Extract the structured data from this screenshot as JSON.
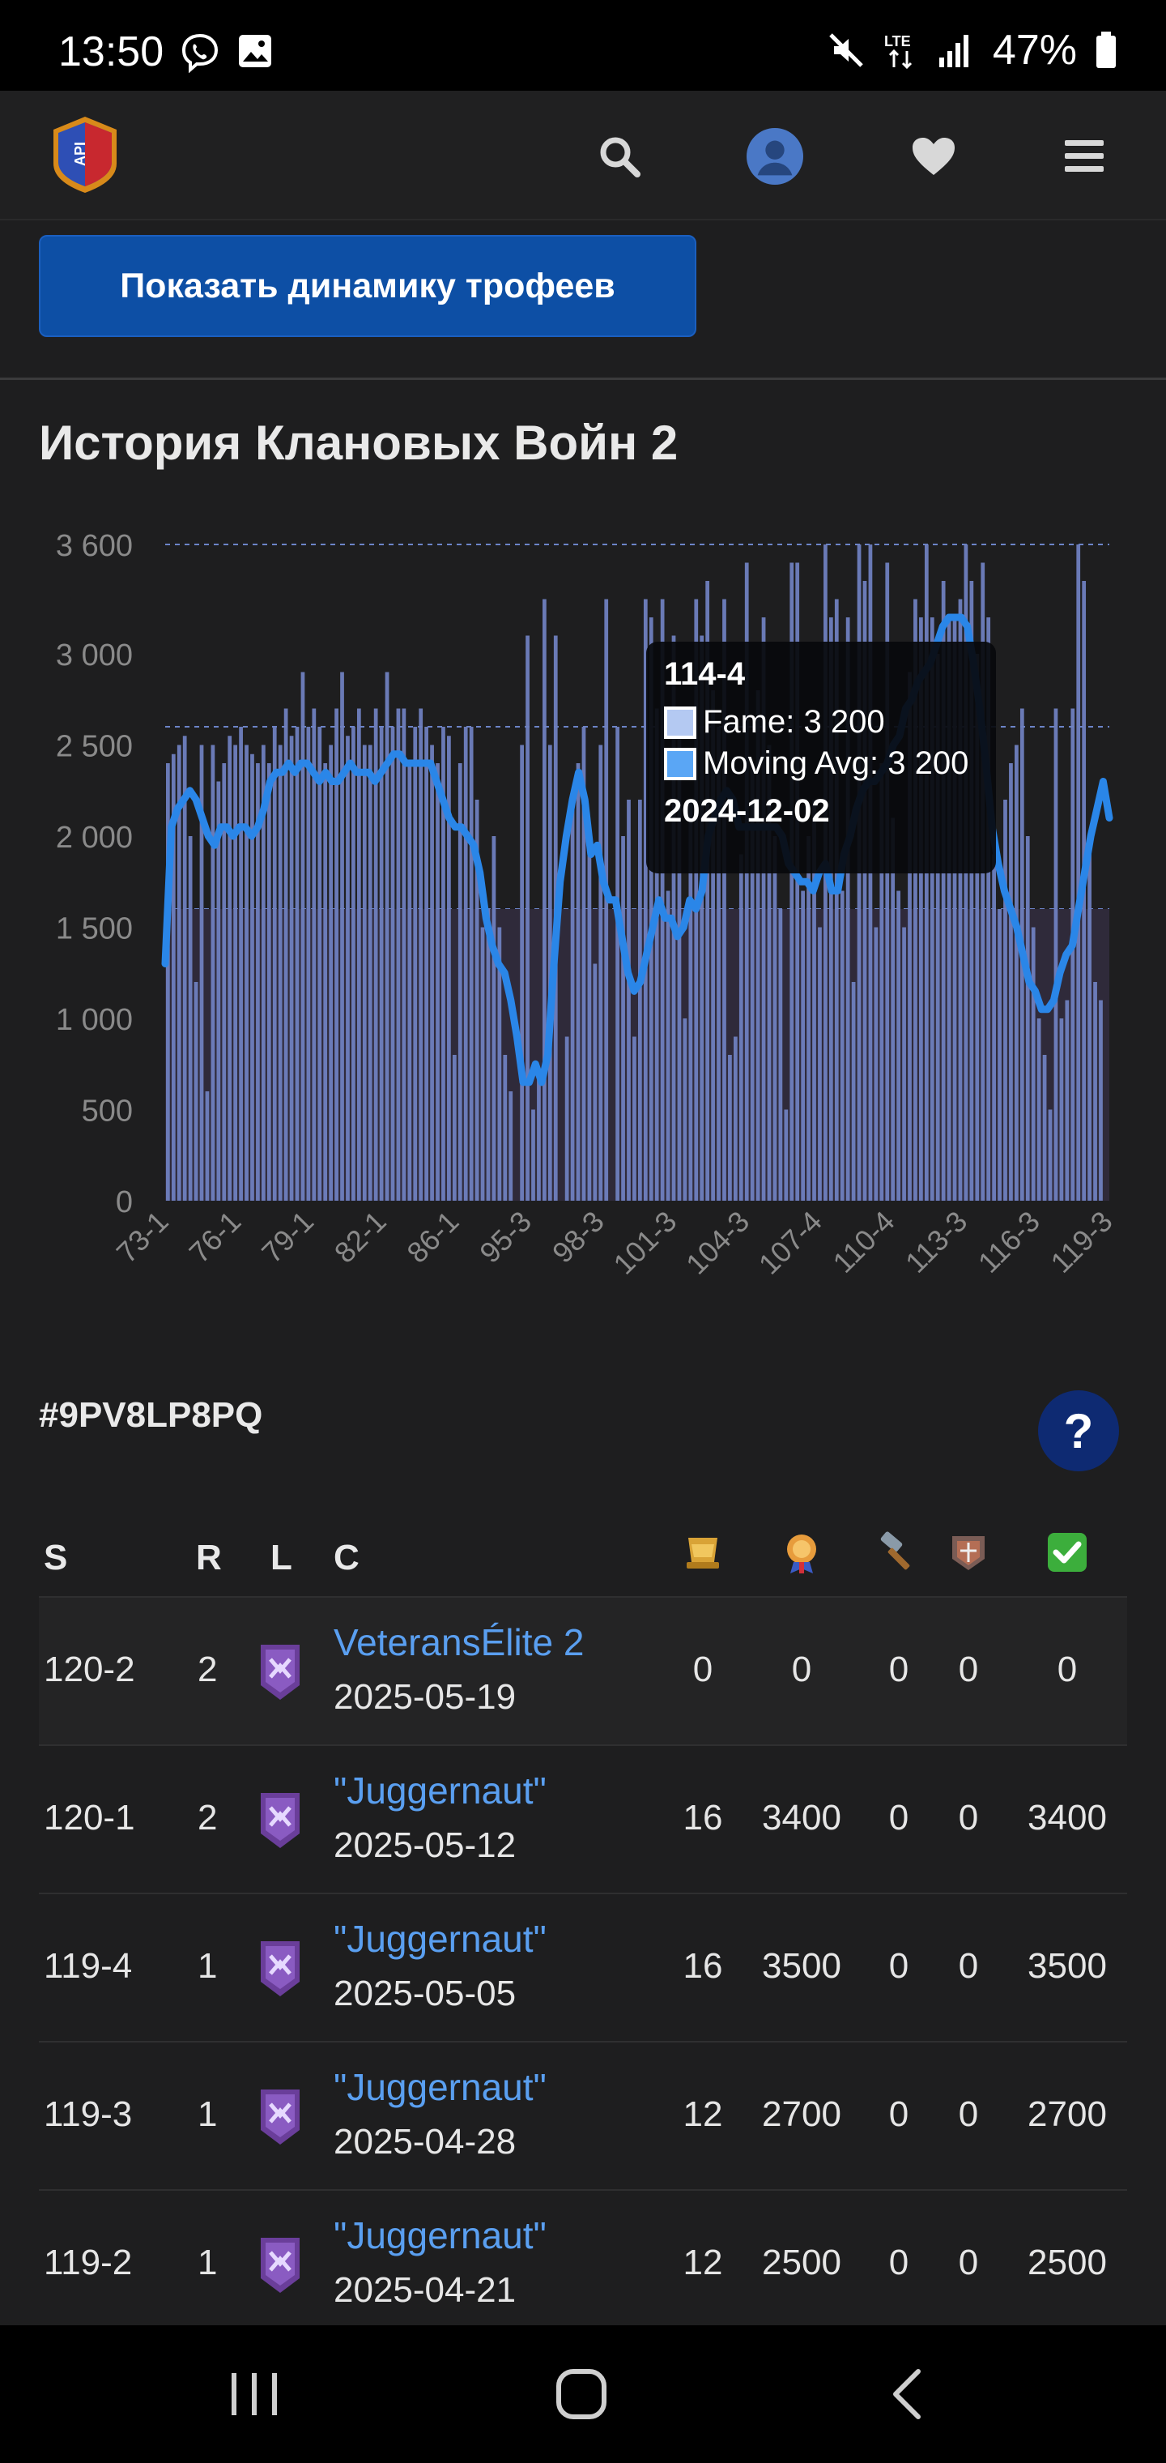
{
  "status": {
    "time": "13:50",
    "battery": "47%",
    "lte": "LTE"
  },
  "header": {
    "logo_text": "API"
  },
  "button_dynamics": "Показать динамику трофеев",
  "section_title": "История Клановых Войн 2",
  "chart_data": {
    "type": "bar",
    "title": "",
    "xlabel": "",
    "ylabel": "",
    "ylim": [
      0,
      3600
    ],
    "yticks": [
      "3 600",
      "3 000",
      "2 500",
      "2 000",
      "1 500",
      "1 000",
      "500",
      "0"
    ],
    "xticks": [
      "73-1",
      "76-1",
      "79-1",
      "82-1",
      "86-1",
      "95-3",
      "98-3",
      "101-3",
      "104-3",
      "107-4",
      "110-4",
      "113-3",
      "116-3",
      "119-3"
    ],
    "series": [
      {
        "name": "Fame",
        "color": "#6f7fbf",
        "values": [
          2400,
          2450,
          2500,
          2550,
          2000,
          1200,
          2500,
          600,
          2500,
          2300,
          2400,
          2550,
          2500,
          2600,
          2500,
          2450,
          2400,
          2500,
          2400,
          2600,
          2500,
          2700,
          2550,
          2600,
          2900,
          2600,
          2700,
          2600,
          2400,
          2500,
          2700,
          2900,
          2550,
          2600,
          2700,
          2500,
          2500,
          2700,
          2600,
          2900,
          2600,
          2700,
          2700,
          2400,
          2600,
          2700,
          2600,
          2500,
          2400,
          2600,
          2550,
          800,
          2400,
          2600,
          2600,
          2200,
          1500,
          1600,
          2000,
          1500,
          800,
          600,
          0,
          2500,
          3100,
          500,
          700,
          3300,
          2500,
          3100,
          0,
          900,
          2200,
          2400,
          2600,
          2000,
          1300,
          2500,
          3300,
          0,
          2600,
          2000,
          2200,
          900,
          2200,
          3300,
          3200,
          2700,
          3300,
          1700,
          3100,
          2600,
          1000,
          2200,
          3300,
          3100,
          3400,
          2800,
          2600,
          3300,
          800,
          900,
          1900,
          3500,
          2400,
          2800,
          3200,
          2500,
          2000,
          1600,
          500,
          3500,
          3500,
          1700,
          2000,
          2200,
          1500,
          3600,
          3200,
          3300,
          1700,
          3200,
          1200,
          3600,
          3400,
          3600,
          1500,
          2400,
          3500,
          2100,
          1700,
          1500,
          2900,
          3300,
          3200,
          3600,
          3200,
          3000,
          3400,
          3200,
          3200,
          3300,
          3600,
          3400,
          3000,
          3500,
          3200,
          1900,
          1600,
          2200,
          2400,
          2500,
          2700,
          2000,
          1500,
          1000,
          800,
          500,
          2700,
          1000,
          1100,
          2700,
          3600,
          3400,
          2000,
          1200,
          1100,
          0
        ]
      },
      {
        "name": "Moving Avg",
        "color": "#2a86e8",
        "values": [
          1300,
          2050,
          2150,
          2200,
          2250,
          2200,
          2100,
          2000,
          1950,
          2050,
          2050,
          2000,
          2050,
          2050,
          2000,
          2050,
          2150,
          2300,
          2350,
          2350,
          2400,
          2350,
          2400,
          2400,
          2350,
          2300,
          2350,
          2300,
          2300,
          2350,
          2400,
          2350,
          2350,
          2350,
          2300,
          2350,
          2400,
          2450,
          2450,
          2400,
          2400,
          2400,
          2400,
          2400,
          2300,
          2200,
          2100,
          2050,
          2050,
          2000,
          1950,
          1800,
          1550,
          1400,
          1300,
          1250,
          1100,
          900,
          650,
          650,
          750,
          650,
          800,
          1300,
          1750,
          2000,
          2200,
          2350,
          2200,
          1900,
          1950,
          1750,
          1650,
          1650,
          1450,
          1250,
          1150,
          1200,
          1350,
          1500,
          1650,
          1550,
          1550,
          1450,
          1500,
          1650,
          1600,
          1700,
          2000,
          2100,
          2200,
          2250,
          2200,
          2050,
          2050,
          2050,
          2050,
          2050,
          2050,
          2050,
          2000,
          1850,
          1800,
          1750,
          1750,
          1700,
          1800,
          1850,
          1700,
          1700,
          1900,
          2000,
          2150,
          2250,
          2300,
          2300,
          2350,
          2400,
          2500,
          2550,
          2700,
          2750,
          2850,
          2900,
          2950,
          3050,
          3150,
          3200,
          3200,
          3200,
          3150,
          2950,
          2700,
          2400,
          2050,
          1850,
          1700,
          1600,
          1500,
          1350,
          1200,
          1150,
          1050,
          1050,
          1100,
          1250,
          1350,
          1400,
          1600,
          1800,
          2000,
          2150,
          2300,
          2100
        ]
      }
    ],
    "highlight": {
      "label": "114-4",
      "date": "2024-12-02",
      "fame_text": "Fame: 3 200",
      "avg_text": "Moving Avg: 3 200"
    }
  },
  "tooltip": {
    "title": "114-4",
    "fame": "Fame: 3 200",
    "avg": "Moving Avg: 3 200",
    "date": "2024-12-02"
  },
  "player_tag": "#9PV8LP8PQ",
  "help_label": "?",
  "table": {
    "headers": {
      "season": "S",
      "rank": "R",
      "league": "L",
      "clan": "C"
    },
    "header_icons": [
      "trophy-icon",
      "medal-icon",
      "hammer-icon",
      "boat-icon",
      "check-icon"
    ],
    "rows": [
      {
        "season": "120-2",
        "rank": "2",
        "clan": "VeteransÉlite 2",
        "date": "2025-05-19",
        "trophies": "0",
        "fame": "0",
        "repair": "0",
        "boat": "0",
        "total": "0"
      },
      {
        "season": "120-1",
        "rank": "2",
        "clan": "\"Juggernaut\"",
        "date": "2025-05-12",
        "trophies": "16",
        "fame": "3400",
        "repair": "0",
        "boat": "0",
        "total": "3400"
      },
      {
        "season": "119-4",
        "rank": "1",
        "clan": "\"Juggernaut\"",
        "date": "2025-05-05",
        "trophies": "16",
        "fame": "3500",
        "repair": "0",
        "boat": "0",
        "total": "3500"
      },
      {
        "season": "119-3",
        "rank": "1",
        "clan": "\"Juggernaut\"",
        "date": "2025-04-28",
        "trophies": "12",
        "fame": "2700",
        "repair": "0",
        "boat": "0",
        "total": "2700"
      },
      {
        "season": "119-2",
        "rank": "1",
        "clan": "\"Juggernaut\"",
        "date": "2025-04-21",
        "trophies": "12",
        "fame": "2500",
        "repair": "0",
        "boat": "0",
        "total": "2500"
      }
    ]
  }
}
